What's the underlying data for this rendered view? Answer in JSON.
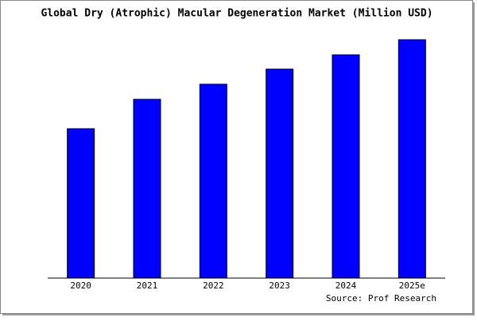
{
  "chart_data": {
    "type": "bar",
    "title": "Global Dry (Atrophic) Macular Degeneration Market (Million USD)",
    "categories": [
      "2020",
      "2021",
      "2022",
      "2023",
      "2024",
      "2025e"
    ],
    "values": [
      188,
      225,
      244,
      263,
      281,
      300
    ],
    "color": "#0000ff",
    "ylim": [
      0,
      308
    ],
    "source": "Source: Prof Research"
  }
}
